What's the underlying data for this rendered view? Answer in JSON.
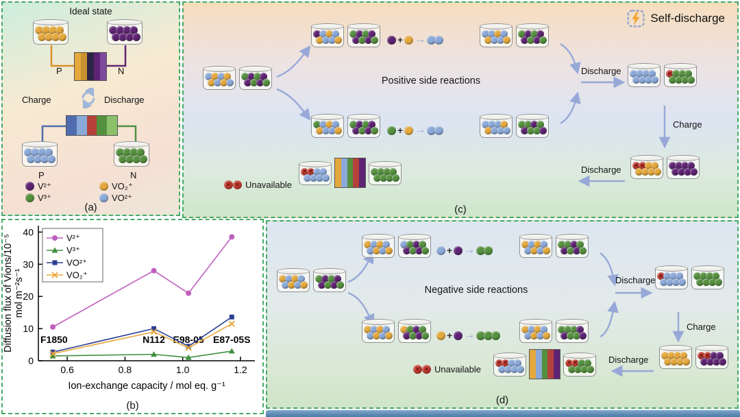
{
  "ball_colors": {
    "o": "#e4a83c",
    "p": "#5e2473",
    "b": "#8ba9d8",
    "g": "#55903f",
    "u": "#c23b30"
  },
  "panel_a": {
    "title": "Ideal state",
    "labels": {
      "p_top": "P",
      "n_top": "N",
      "p_bottom": "P",
      "n_bottom": "N",
      "charge": "Charge",
      "discharge": "Discharge",
      "caption": "(a)"
    },
    "legend": [
      {
        "sym": "V²⁺",
        "c": "#5e2473"
      },
      {
        "sym": "VO₂⁺",
        "c": "#e4a83c"
      },
      {
        "sym": "V³⁺",
        "c": "#55903f"
      },
      {
        "sym": "VO²⁺",
        "c": "#8ba9d8"
      }
    ],
    "cyl": {
      "tl": [
        "oooo",
        "oooo"
      ],
      "tr": [
        "pppp",
        "pppp"
      ],
      "bl": [
        "bbbb",
        "bbbb"
      ],
      "br": [
        "gggg",
        "gggg"
      ]
    },
    "stack_top": [
      "#e4a83c",
      "#c8912f",
      "#2d2547",
      "#5e2473",
      "#7d4b9b"
    ],
    "stack_bottom": [
      "#4f6cae",
      "#8ba9d8",
      "#b5423a",
      "#55903f",
      "#8cc06a"
    ]
  },
  "panel_b": {
    "caption": "(b)",
    "chart_data": {
      "type": "line",
      "x": [
        0.55,
        0.9,
        1.02,
        1.17
      ],
      "series": [
        {
          "name": "V²⁺",
          "color": "#bf60bf",
          "marker": "circle",
          "values": [
            10.5,
            28,
            21,
            38.5
          ]
        },
        {
          "name": "V³⁺",
          "color": "#3f8f3f",
          "marker": "triangle",
          "values": [
            1.5,
            2,
            1,
            3
          ]
        },
        {
          "name": "VO²⁺",
          "color": "#2c3f94",
          "marker": "square",
          "values": [
            2.7,
            10,
            4.5,
            13.6
          ]
        },
        {
          "name": "VO₂⁺",
          "color": "#e8a83c",
          "marker": "x",
          "values": [
            2.2,
            9,
            4,
            11.5
          ]
        }
      ],
      "membrane_labels": [
        "F1850",
        "N112",
        "E98-05",
        "E87-05S"
      ],
      "xlabel": "Ion-exchange capacity / mol eq. g⁻¹",
      "ylabel_line1": "Diffusion flux of Vions/10⁻⁵",
      "ylabel_line2": "mol m⁻²s⁻¹",
      "xlim": [
        0.5,
        1.25
      ],
      "ylim": [
        0,
        42
      ],
      "xticks": [
        "0.6",
        "0.8",
        "1.0",
        "1.2"
      ],
      "yticks": [
        0,
        10,
        20,
        30,
        40
      ],
      "legend_position": "top-left",
      "grid": false
    }
  },
  "panel_c": {
    "title": "Self-discharge",
    "reaction": "Positive side reactions",
    "discharge_right": "Discharge",
    "charge": "Charge",
    "discharge_bottom": "Discharge",
    "unavailable": "Unavailable",
    "unavailable_balls": "uu",
    "caption": "(c)",
    "eq_top": {
      "a": "p",
      "b": "o",
      "out": "bb"
    },
    "eq_low": {
      "a": "g",
      "b": "o",
      "out": "bb"
    },
    "cyl": {
      "left_pos": [
        "bobo",
        "obob"
      ],
      "left_neg": [
        "gpgp",
        "pgpg"
      ],
      "up_a_pos": [
        "pbob",
        "obbo"
      ],
      "up_a_neg": [
        "gpgp",
        "pgpg"
      ],
      "up_b_pos": [
        "bbob",
        "obbo"
      ],
      "up_b_neg": [
        "gpgp",
        "pgpg"
      ],
      "low_a_pos": [
        "gbob",
        "obbo"
      ],
      "low_a_neg": [
        "gpgp",
        "pgpg"
      ],
      "low_b_pos": [
        "bbbo",
        "obbb"
      ],
      "low_b_neg": [
        "ggpg",
        "pggp"
      ],
      "right_top_pos": [
        "bbbb",
        "bbbb"
      ],
      "right_top_neg": [
        "uggg",
        "gggg"
      ],
      "right_bot_pos": [
        "uuoo",
        "oooo"
      ],
      "right_bot_neg": [
        "pppp",
        "pppp"
      ],
      "bat_left": [
        "uubb",
        "bbbb"
      ],
      "bat_right": [
        "gggg",
        "gggg"
      ]
    },
    "stack": [
      "#e4a83c",
      "#8ba9d8",
      "#55903f",
      "#b5423a",
      "#5e2473"
    ]
  },
  "panel_d": {
    "reaction": "Negative side reactions",
    "discharge_right": "Discharge",
    "charge": "Charge",
    "discharge_bottom": "Discharge",
    "unavailable": "Unavailable",
    "unavailable_balls": "uu",
    "caption": "(d)",
    "eq_top": {
      "a": "b",
      "b": "p",
      "out": "gg"
    },
    "eq_low": {
      "a": "o",
      "b": "p",
      "out": "ggg"
    },
    "cyl": {
      "left_pos": [
        "obob",
        "bobo"
      ],
      "left_neg": [
        "gpgp",
        "pgpg"
      ],
      "up_a_pos": [
        "obob",
        "bobo"
      ],
      "up_a_neg": [
        "bgpg",
        "pgpg"
      ],
      "up_b_pos": [
        "obob",
        "bobo"
      ],
      "up_b_neg": [
        "ggpg",
        "pgpg"
      ],
      "low_a_pos": [
        "obob",
        "bobo"
      ],
      "low_a_neg": [
        "ogpg",
        "pgpg"
      ],
      "low_b_pos": [
        "obob",
        "bobo"
      ],
      "low_b_neg": [
        "gggp",
        "pggp"
      ],
      "right_top_pos": [
        "ubbb",
        "bbbb"
      ],
      "right_top_neg": [
        "gggg",
        "gggg"
      ],
      "right_bot_pos": [
        "oooo",
        "oooo"
      ],
      "right_bot_neg": [
        "uupp",
        "pppp"
      ],
      "bat_left": [
        "uubb",
        "bbbb"
      ],
      "bat_right": [
        "uugg",
        "gggg"
      ]
    },
    "stack": [
      "#e4a83c",
      "#8ba9d8",
      "#55903f",
      "#b5423a",
      "#5e2473"
    ]
  }
}
